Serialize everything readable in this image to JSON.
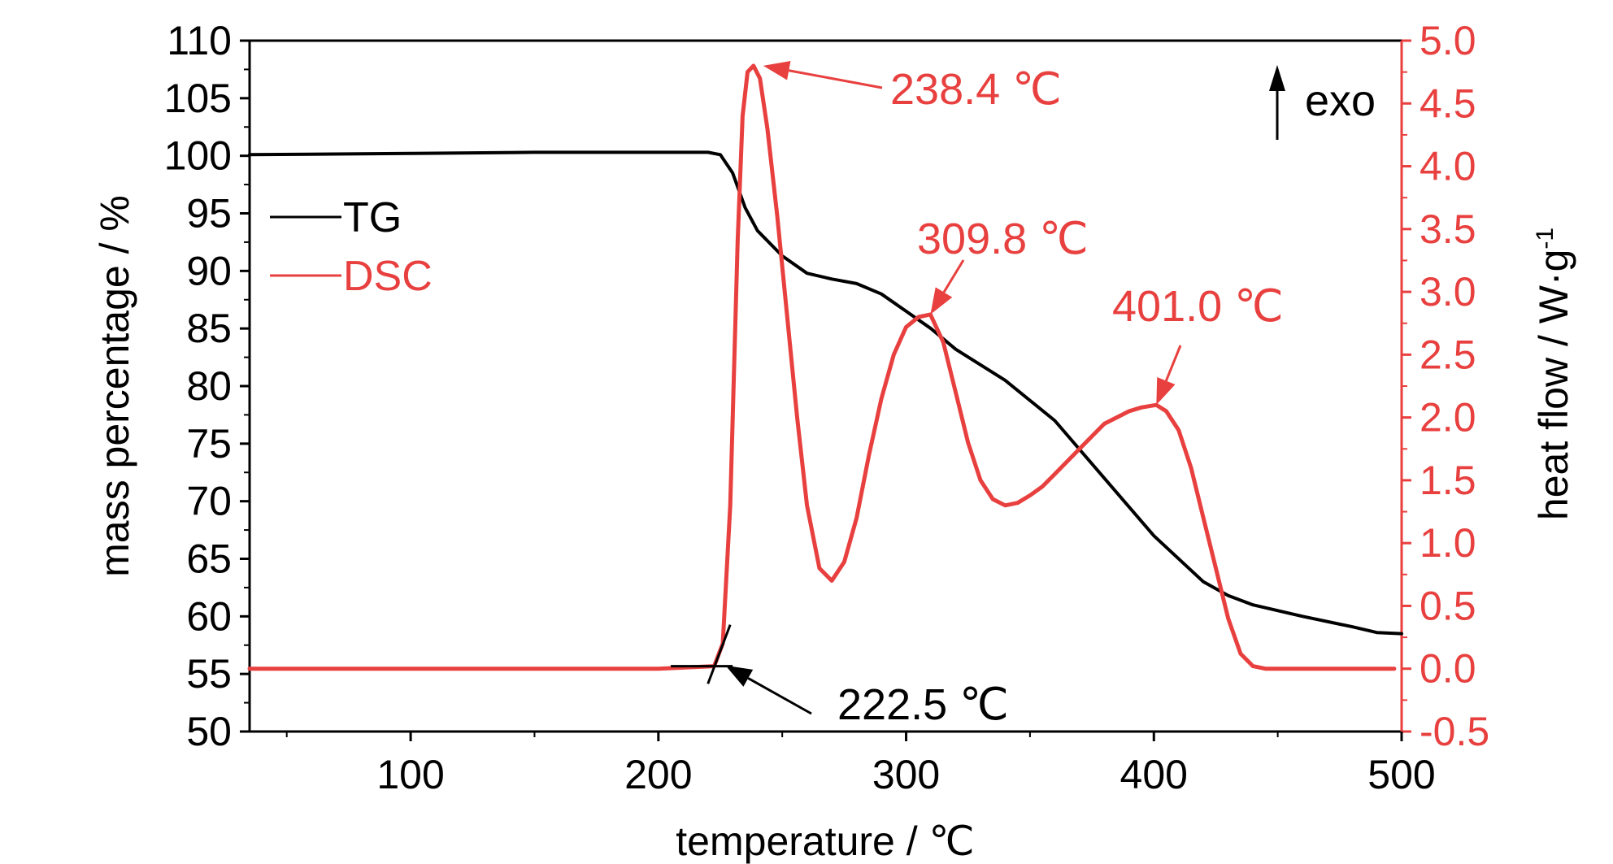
{
  "chart_data": {
    "type": "line",
    "title": "",
    "xlabel": "temperature / ℃",
    "ylabel_left": "mass percentage / %",
    "ylabel_right": "heat flow / W·g",
    "ylabel_right_sup": "-1",
    "xlim": [
      35,
      500
    ],
    "ylim_left": [
      50,
      110
    ],
    "ylim_right": [
      -0.5,
      5.0
    ],
    "x_ticks": [
      "100",
      "200",
      "300",
      "400",
      "500"
    ],
    "y_left_ticks": [
      "50",
      "55",
      "60",
      "65",
      "70",
      "75",
      "80",
      "85",
      "90",
      "95",
      "100",
      "105",
      "110"
    ],
    "y_right_ticks": [
      "-0.5",
      "0.0",
      "0.5",
      "1.0",
      "1.5",
      "2.0",
      "2.5",
      "3.0",
      "3.5",
      "4.0",
      "4.5",
      "5.0"
    ],
    "grid": false,
    "legend_position": "left",
    "series": [
      {
        "name": "TG",
        "axis": "left",
        "color": "#000000",
        "x": [
          35,
          100,
          150,
          200,
          220,
          225,
          230,
          235,
          240,
          250,
          260,
          270,
          280,
          290,
          300,
          310,
          320,
          340,
          360,
          380,
          400,
          420,
          430,
          440,
          460,
          480,
          490,
          500
        ],
        "y": [
          100.1,
          100.2,
          100.3,
          100.3,
          100.3,
          100.1,
          98.5,
          95.5,
          93.5,
          91.3,
          89.8,
          89.3,
          88.9,
          88.0,
          86.5,
          85.0,
          83.2,
          80.5,
          77.0,
          72.0,
          67.0,
          63.0,
          61.8,
          61.0,
          60.0,
          59.1,
          58.6,
          58.5
        ]
      },
      {
        "name": "DSC",
        "axis": "right",
        "color": "#e8403f",
        "x": [
          35,
          100,
          150,
          200,
          222.5,
          226,
          229,
          232,
          234,
          236,
          238.4,
          241,
          244,
          248,
          252,
          256,
          260,
          265,
          270,
          275,
          280,
          285,
          290,
          295,
          300,
          305,
          309.8,
          315,
          320,
          325,
          330,
          335,
          340,
          345,
          350,
          355,
          360,
          365,
          370,
          375,
          380,
          385,
          390,
          395,
          401,
          405,
          410,
          415,
          420,
          425,
          430,
          435,
          440,
          445,
          450,
          470,
          490,
          497
        ],
        "y": [
          0.0,
          0.0,
          0.0,
          0.0,
          0.02,
          0.2,
          1.3,
          3.4,
          4.4,
          4.75,
          4.8,
          4.7,
          4.3,
          3.6,
          2.8,
          2.0,
          1.3,
          0.8,
          0.7,
          0.85,
          1.2,
          1.7,
          2.15,
          2.5,
          2.72,
          2.8,
          2.82,
          2.6,
          2.2,
          1.8,
          1.5,
          1.35,
          1.3,
          1.32,
          1.38,
          1.45,
          1.55,
          1.65,
          1.75,
          1.85,
          1.95,
          2.0,
          2.05,
          2.08,
          2.1,
          2.05,
          1.9,
          1.6,
          1.2,
          0.8,
          0.4,
          0.12,
          0.02,
          0.0,
          0.0,
          0.0,
          0.0,
          0.0
        ]
      }
    ],
    "annotations": [
      {
        "text": "238.4 ℃",
        "color": "#e8403f",
        "x": 238.4,
        "y_right": 4.8
      },
      {
        "text": "309.8 ℃",
        "color": "#e8403f",
        "x": 309.8,
        "y_right": 2.82
      },
      {
        "text": "401.0 ℃",
        "color": "#e8403f",
        "x": 401.0,
        "y_right": 2.1
      },
      {
        "text": "222.5 ℃",
        "color": "#000000",
        "x": 222.5,
        "y_right": 0.0
      }
    ],
    "exo_label": "exo"
  }
}
